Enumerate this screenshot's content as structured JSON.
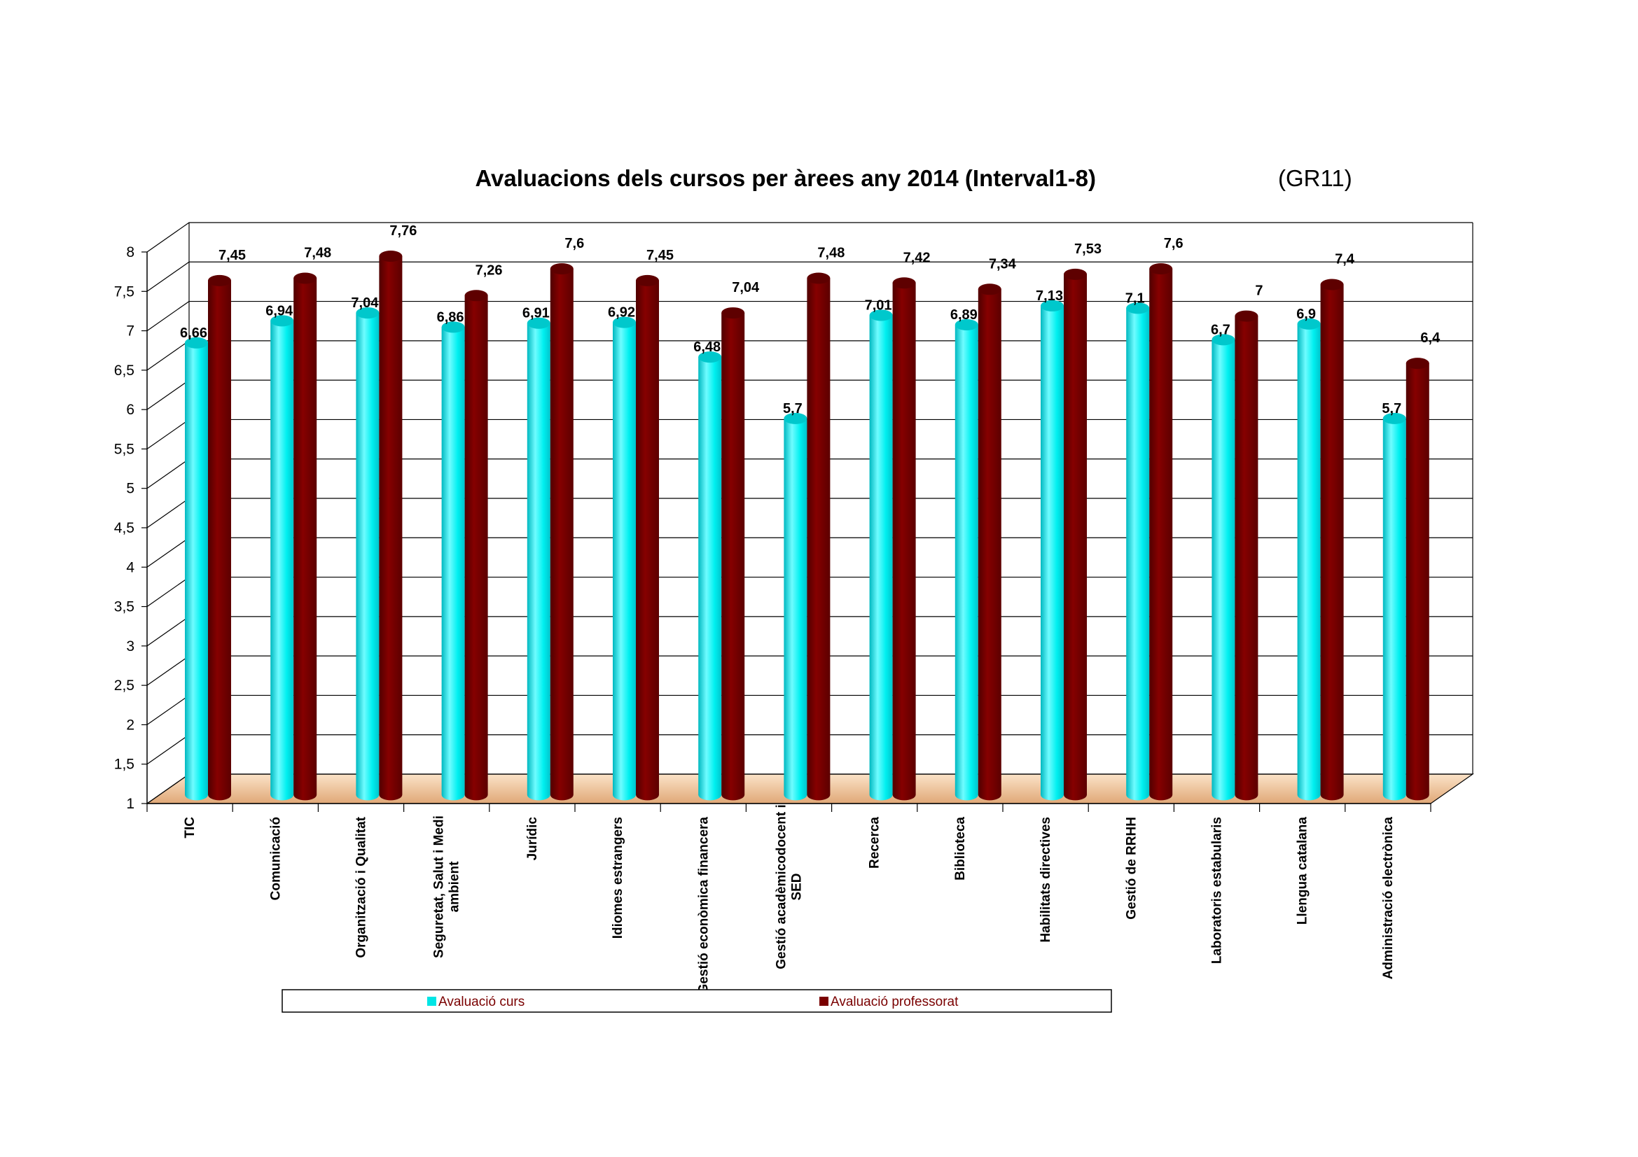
{
  "chart_data": {
    "type": "bar",
    "title": "Avaluacions dels cursos per àrees any 2014  (Interval1-8)",
    "subtitle": "(GR11)",
    "xlabel": "",
    "ylabel": "",
    "ylim": [
      1,
      8
    ],
    "yticks": [
      "1",
      "1,5",
      "2",
      "2,5",
      "3",
      "3,5",
      "4",
      "4,5",
      "5",
      "5,5",
      "6",
      "6,5",
      "7",
      "7,5",
      "8"
    ],
    "categories": [
      [
        "TIC"
      ],
      [
        "Comunicació"
      ],
      [
        "Organització i Qualitat"
      ],
      [
        "Seguretat, Salut i Medi",
        "ambient"
      ],
      [
        "Jurídic"
      ],
      [
        "Idiomes estrangers"
      ],
      [
        "Gestió econòmica financera"
      ],
      [
        "Gestió acadèmicodocent i",
        "SED"
      ],
      [
        "Recerca"
      ],
      [
        "Biblioteca"
      ],
      [
        "Habilitats directives"
      ],
      [
        "Gestió de RRHH"
      ],
      [
        "Laboratoris estabularis"
      ],
      [
        "Llengua catalana"
      ],
      [
        "Administració electrònica"
      ]
    ],
    "series": [
      {
        "name": "Avaluació curs",
        "color": "#00e5e5",
        "values": [
          6.66,
          6.94,
          7.04,
          6.86,
          6.91,
          6.92,
          6.48,
          5.7,
          7.01,
          6.89,
          7.13,
          7.1,
          6.7,
          6.9,
          5.7
        ],
        "labels": [
          "6,66",
          "6,94",
          "7,04",
          "6,86",
          "6,91",
          "6,92",
          "6,48",
          "5,7",
          "7,01",
          "6,89",
          "7,13",
          "7,1",
          "6,7",
          "6,9",
          "5,7"
        ]
      },
      {
        "name": "Avaluació professorat",
        "color": "#7a0000",
        "values": [
          7.45,
          7.48,
          7.76,
          7.26,
          7.6,
          7.45,
          7.04,
          7.48,
          7.42,
          7.34,
          7.53,
          7.6,
          7.0,
          7.4,
          6.4
        ],
        "labels": [
          "7,45",
          "7,48",
          "7,76",
          "7,26",
          "7,6",
          "7,45",
          "7,04",
          "7,48",
          "7,42",
          "7,34",
          "7,53",
          "7,6",
          "7",
          "7,4",
          "6,4"
        ]
      }
    ],
    "legend_position": "bottom",
    "grid": true
  }
}
